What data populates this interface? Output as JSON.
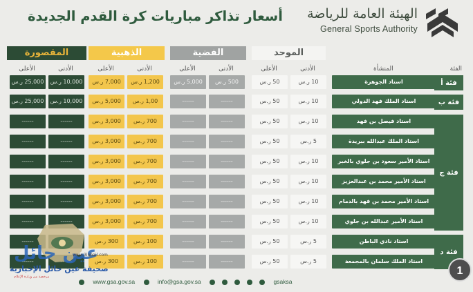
{
  "header": {
    "org_ar": "الهيئة العامة للرياضة",
    "org_en": "General Sports Authority",
    "title": "أسعار تذاكر مباريات كرة القدم الجديدة"
  },
  "groups": {
    "maq": "المقصورة",
    "dha": "الذهبية",
    "fid": "الفضية",
    "muw": "الموحد"
  },
  "subheaders": {
    "low": "الأدنى",
    "high": "الأعلى",
    "stadium": "المنشأة",
    "category": "الفئة"
  },
  "categories": [
    "فئة أ",
    "فئة ب",
    "فئة ج",
    "فئة د"
  ],
  "rows": [
    {
      "stadium": "استاد الجوهرة",
      "maq_high": "25,000 ر.س",
      "maq_low": "10,000 ر.س",
      "dha_high": "7,000 ر.س",
      "dha_low": "1,200 ر.س",
      "fid_high": "5,000 ر.س",
      "fid_low": "500 ر.س",
      "muw_high": "50 ر.س",
      "muw_low": "10 ر.س"
    },
    {
      "stadium": "استاد الملك فهد الدولي",
      "maq_high": "25,000 ر.س",
      "maq_low": "10,000 ر.س",
      "dha_high": "5,000 ر.س",
      "dha_low": "1,00 ر.س",
      "fid_high": "------",
      "fid_low": "------",
      "muw_high": "50 ر.س",
      "muw_low": "10 ر.س"
    },
    {
      "stadium": "استاد فيصل بن فهد",
      "maq_high": "------",
      "maq_low": "------",
      "dha_high": "3,000 ر.س",
      "dha_low": "700 ر.س",
      "fid_high": "------",
      "fid_low": "------",
      "muw_high": "50 ر.س",
      "muw_low": "10 ر.س"
    },
    {
      "stadium": "استاد الملك عبدالله ببريدة",
      "maq_high": "------",
      "maq_low": "------",
      "dha_high": "3,000 ر.س",
      "dha_low": "700 ر.س",
      "fid_high": "------",
      "fid_low": "------",
      "muw_high": "50 ر.س",
      "muw_low": "5 ر.س"
    },
    {
      "stadium": "استاد الأمير سعود بن جلوي بالخبر",
      "maq_high": "------",
      "maq_low": "------",
      "dha_high": "3,000 ر.س",
      "dha_low": "700 ر.س",
      "fid_high": "------",
      "fid_low": "------",
      "muw_high": "50 ر.س",
      "muw_low": "10 ر.س"
    },
    {
      "stadium": "استاد الأمير محمد بن عبدالعزيز",
      "maq_high": "------",
      "maq_low": "------",
      "dha_high": "3,000 ر.س",
      "dha_low": "700 ر.س",
      "fid_high": "------",
      "fid_low": "------",
      "muw_high": "50 ر.س",
      "muw_low": "10 ر.س"
    },
    {
      "stadium": "استاد الأمير محمد بن فهد بالدمام",
      "maq_high": "------",
      "maq_low": "------",
      "dha_high": "3,000 ر.س",
      "dha_low": "700 ر.س",
      "fid_high": "------",
      "fid_low": "------",
      "muw_high": "50 ر.س",
      "muw_low": "10 ر.س"
    },
    {
      "stadium": "استاد الأمير عبدالله بن جلوي",
      "maq_high": "------",
      "maq_low": "------",
      "dha_high": "3,000 ر.س",
      "dha_low": "700 ر.س",
      "fid_high": "------",
      "fid_low": "------",
      "muw_high": "50 ر.س",
      "muw_low": "10 ر.س"
    },
    {
      "stadium": "استاد نادي الباطن",
      "maq_high": "------",
      "maq_low": "------",
      "dha_high": "300 ر.س",
      "dha_low": "100 ر.س",
      "fid_high": "------",
      "fid_low": "------",
      "muw_high": "50 ر.س",
      "muw_low": "5 ر.س"
    },
    {
      "stadium": "استاد الملك سلمان بالمجمعة",
      "maq_high": "------",
      "maq_low": "------",
      "dha_high": "300 ر.س",
      "dha_low": "100 ر.س",
      "fid_high": "------",
      "fid_low": "------",
      "muw_high": "50 ر.س",
      "muw_low": "5 ر.س"
    }
  ],
  "footer": {
    "web": "www.gsa.gov.sa",
    "email": "info@gsa.gov.sa",
    "social": "gsaksa"
  },
  "watermark": {
    "name": "عين حائل",
    "sub": "صحيفة عين حائل الإخبارية",
    "url": "www.3inhail.com",
    "note": "مرخصة من وزارة الإعلام"
  },
  "badge": "1",
  "colors": {
    "dark_green": "#2c4b35",
    "gold": "#f4c84a",
    "silver": "#a0a3a2",
    "stadium_green": "#3f6b4a"
  }
}
